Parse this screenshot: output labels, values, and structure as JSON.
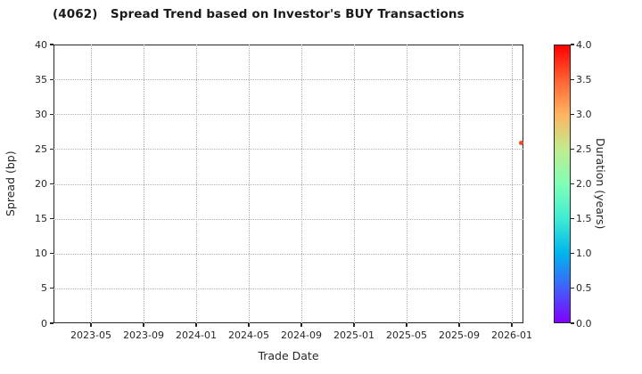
{
  "figure": {
    "title": "(4062)   Spread Trend based on Investor's BUY Transactions"
  },
  "chart_data": {
    "type": "scatter",
    "title": "(4062)   Spread Trend based on Investor's BUY Transactions",
    "xlabel": "Trade Date",
    "ylabel": "Spread (bp)",
    "ylim": [
      0,
      40
    ],
    "y_ticks": [
      0,
      5,
      10,
      15,
      20,
      25,
      30,
      35,
      40
    ],
    "x_domain_months": [
      1.15,
      36.88
    ],
    "x_ticks": [
      {
        "label": "2023-05",
        "month": 4
      },
      {
        "label": "2023-09",
        "month": 8
      },
      {
        "label": "2024-01",
        "month": 12
      },
      {
        "label": "2024-05",
        "month": 16
      },
      {
        "label": "2024-09",
        "month": 20
      },
      {
        "label": "2025-01",
        "month": 24
      },
      {
        "label": "2025-05",
        "month": 28
      },
      {
        "label": "2025-09",
        "month": 32
      },
      {
        "label": "2026-01",
        "month": 36
      }
    ],
    "grid": {
      "style": "dotted",
      "color": "#b0b0b0"
    },
    "legend": "none",
    "points": [
      {
        "trade_date": "2026-01",
        "month": 36.7,
        "spread_bp": 25.9,
        "duration_years": 3.6,
        "color": "#f8481f"
      }
    ],
    "colorbar": {
      "label": "Duration (years)",
      "min": 0.0,
      "max": 4.0,
      "colormap": "rainbow",
      "ticks": [
        {
          "value": 0.0,
          "label": "0.0"
        },
        {
          "value": 0.5,
          "label": "0.5"
        },
        {
          "value": 1.0,
          "label": "1.0"
        },
        {
          "value": 1.5,
          "label": "1.5"
        },
        {
          "value": 2.0,
          "label": "2.0"
        },
        {
          "value": 2.5,
          "label": "2.5"
        },
        {
          "value": 3.0,
          "label": "3.0"
        },
        {
          "value": 3.5,
          "label": "3.5"
        },
        {
          "value": 4.0,
          "label": "4.0"
        }
      ],
      "gradient_bottom_to_top": [
        "#8000ff",
        "#4061fa",
        "#00b5ec",
        "#40ecd4",
        "#80ffb5",
        "#bfec8e",
        "#ffb461",
        "#ff6232",
        "#ff0000"
      ]
    },
    "colors": {
      "background": "#ffffff",
      "title_text": "#1a1a1a",
      "axis_text": "#262626",
      "spine": "#262626",
      "gridline": "#b0b0b0",
      "point": "#f8481f"
    }
  }
}
